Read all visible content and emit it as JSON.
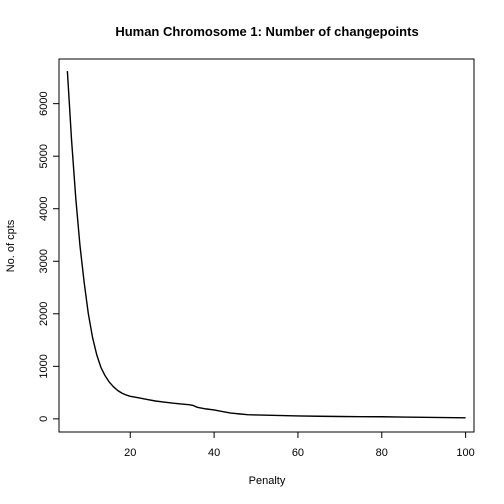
{
  "chart_data": {
    "type": "line",
    "title": "Human Chromosome 1: Number of changepoints",
    "xlabel": "Penalty",
    "ylabel": "No. of cpts",
    "xlim": [
      3,
      102
    ],
    "ylim": [
      -250,
      6850
    ],
    "x_ticks": [
      20,
      40,
      60,
      80,
      100
    ],
    "x_tick_labels": [
      "20",
      "40",
      "60",
      "80",
      "100"
    ],
    "y_ticks": [
      0,
      1000,
      2000,
      3000,
      4000,
      5000,
      6000
    ],
    "y_tick_labels": [
      "0",
      "1000",
      "2000",
      "3000",
      "4000",
      "5000",
      "6000"
    ],
    "grid": false,
    "series": [
      {
        "color": "#000000",
        "x": [
          5,
          6,
          7,
          8,
          9,
          10,
          11,
          12,
          13,
          14,
          15,
          16,
          17,
          18,
          19,
          20,
          22,
          24,
          26,
          28,
          30,
          32,
          34,
          35,
          36,
          38,
          40,
          42,
          44,
          46,
          48,
          50,
          55,
          60,
          65,
          70,
          75,
          80,
          85,
          90,
          95,
          100
        ],
        "y": [
          6620,
          5300,
          4200,
          3300,
          2600,
          2000,
          1550,
          1220,
          980,
          820,
          700,
          610,
          540,
          490,
          455,
          430,
          400,
          370,
          340,
          320,
          300,
          285,
          270,
          255,
          220,
          190,
          170,
          140,
          110,
          95,
          80,
          75,
          65,
          55,
          50,
          45,
          42,
          40,
          35,
          30,
          25,
          20
        ]
      }
    ]
  }
}
